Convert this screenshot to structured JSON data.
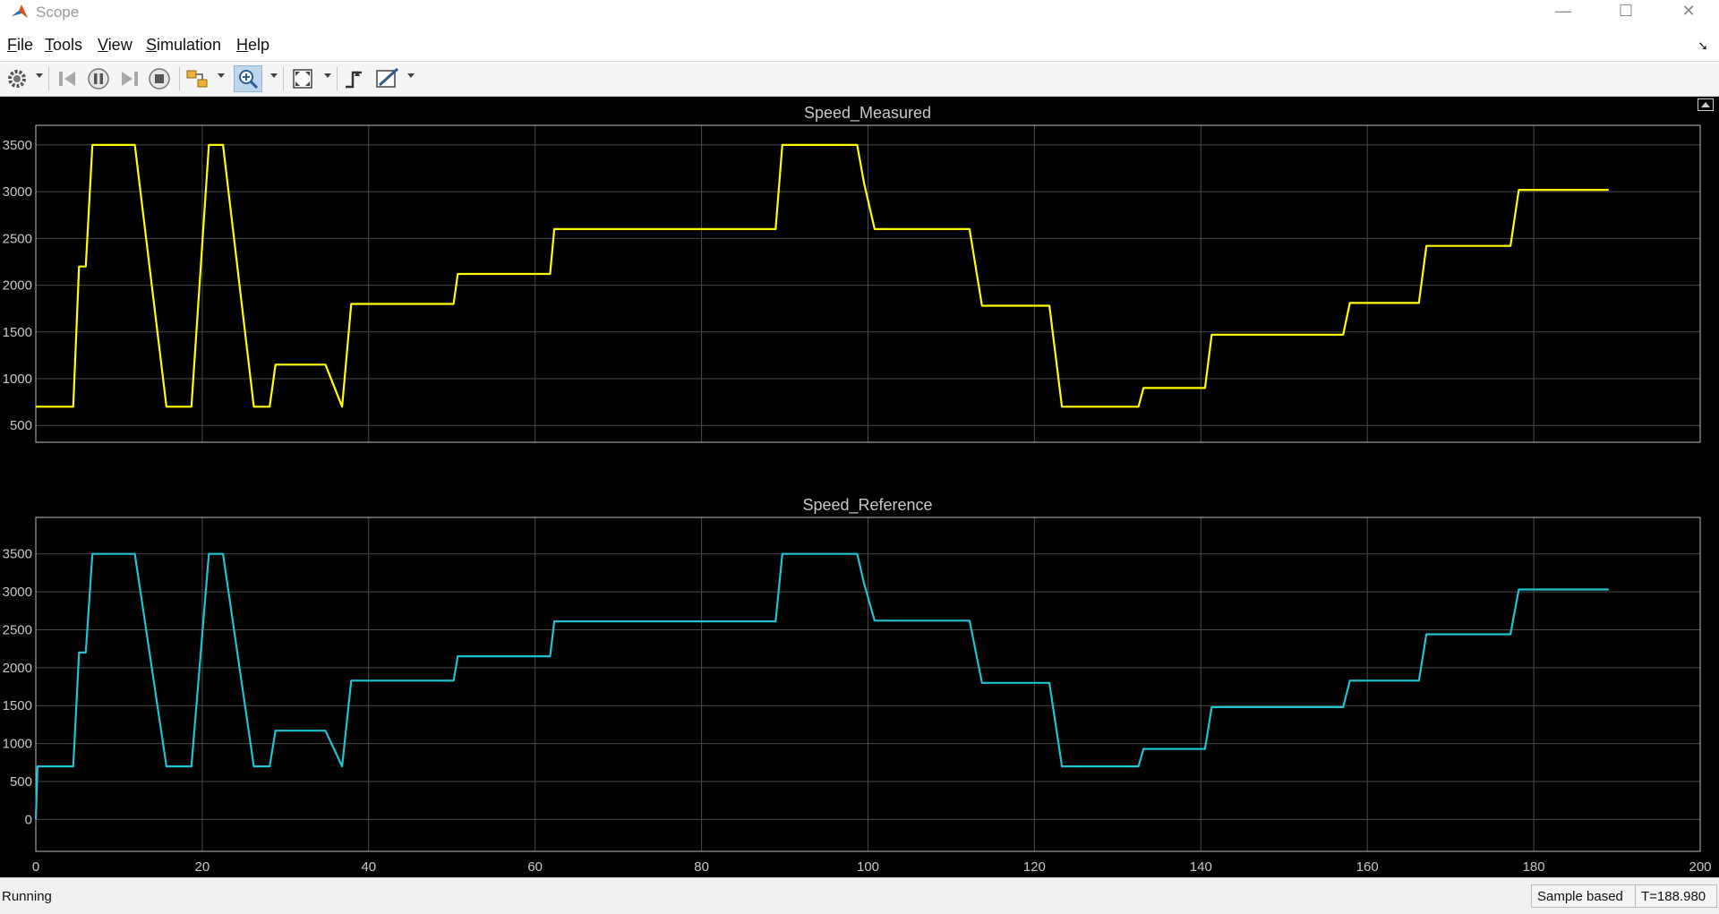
{
  "window": {
    "title": "Scope",
    "minimize": "—",
    "maximize": "☐",
    "close": "✕"
  },
  "menu": {
    "items": [
      {
        "label": "File",
        "accel": "F"
      },
      {
        "label": "Tools",
        "accel": "T"
      },
      {
        "label": "View",
        "accel": "V"
      },
      {
        "label": "Simulation",
        "accel": "S"
      },
      {
        "label": "Help",
        "accel": "H"
      }
    ]
  },
  "toolbar": {
    "buttons": [
      "settings-icon",
      "step-back-icon",
      "pause-icon",
      "step-forward-icon",
      "stop-icon",
      "highlight-block-icon",
      "zoom-in-icon",
      "scale-axes-icon",
      "triggers-icon",
      "measurements-icon"
    ],
    "active": "zoom-in-icon"
  },
  "colors": {
    "measured": "#ffff00",
    "reference": "#1fc4d2",
    "grid": "#4a4a4a",
    "axes": "#bdbdbd",
    "text": "#c8c8c8"
  },
  "chart_data": [
    {
      "type": "line",
      "title": "Speed_Measured",
      "xlabel": "",
      "ylabel": "",
      "xlim": [
        0,
        200
      ],
      "ylim": [
        320,
        3710
      ],
      "yticks": [
        500,
        1000,
        1500,
        2000,
        2500,
        3000,
        3500
      ],
      "xticks": [
        0,
        20,
        40,
        60,
        80,
        100,
        120,
        140,
        160,
        180,
        200
      ],
      "show_xtick_labels": false,
      "grid": true,
      "legend": "none",
      "series": [
        {
          "color": "#ffff00",
          "x": [
            0,
            4.5,
            5.2,
            6,
            6.8,
            11.9,
            15.7,
            18.7,
            20.8,
            22.5,
            26.2,
            28.1,
            28.8,
            34.8,
            36.8,
            37.9,
            50.2,
            50.7,
            61.8,
            62.3,
            88.9,
            89.7,
            98.7,
            99.5,
            100.8,
            112.2,
            113.7,
            121.8,
            123.3,
            132.5,
            133.1,
            140.5,
            141.3,
            157.1,
            157.9,
            166.2,
            167.1,
            177.2,
            178.2,
            189
          ],
          "y": [
            700,
            700,
            2200,
            2200,
            3500,
            3500,
            700,
            700,
            3500,
            3500,
            700,
            700,
            1150,
            1150,
            700,
            1800,
            1800,
            2120,
            2120,
            2600,
            2600,
            3500,
            3500,
            3100,
            2600,
            2600,
            1780,
            1780,
            700,
            700,
            900,
            900,
            1470,
            1470,
            1810,
            1810,
            2420,
            2420,
            3020,
            3020
          ]
        }
      ]
    },
    {
      "type": "line",
      "title": "Speed_Reference",
      "xlabel": "",
      "ylabel": "",
      "xlim": [
        0,
        200
      ],
      "ylim": [
        -420,
        3980
      ],
      "yticks": [
        0,
        500,
        1000,
        1500,
        2000,
        2500,
        3000,
        3500
      ],
      "xticks": [
        0,
        20,
        40,
        60,
        80,
        100,
        120,
        140,
        160,
        180,
        200
      ],
      "show_xtick_labels": true,
      "grid": true,
      "legend": "none",
      "series": [
        {
          "color": "#1fc4d2",
          "x": [
            0,
            0.2,
            4.5,
            5.2,
            6,
            6.8,
            11.9,
            15.7,
            18.7,
            20.8,
            22.5,
            26.2,
            28.1,
            28.8,
            34.8,
            36.8,
            37.9,
            50.2,
            50.7,
            61.8,
            62.3,
            88.9,
            89.7,
            98.7,
            99.5,
            100.8,
            112.2,
            113.7,
            121.8,
            123.3,
            132.5,
            133.1,
            140.5,
            141.3,
            157.1,
            157.9,
            166.2,
            167.1,
            177.2,
            178.2,
            189
          ],
          "y": [
            0,
            700,
            700,
            2200,
            2200,
            3500,
            3500,
            700,
            700,
            3500,
            3500,
            700,
            700,
            1170,
            1170,
            700,
            1830,
            1830,
            2150,
            2150,
            2610,
            2610,
            3500,
            3500,
            3120,
            2620,
            2620,
            1800,
            1800,
            700,
            700,
            930,
            930,
            1480,
            1480,
            1830,
            1830,
            2440,
            2440,
            3030,
            3030
          ]
        }
      ]
    }
  ],
  "status": {
    "left": "Running",
    "mode": "Sample based",
    "time": "T=188.980"
  }
}
